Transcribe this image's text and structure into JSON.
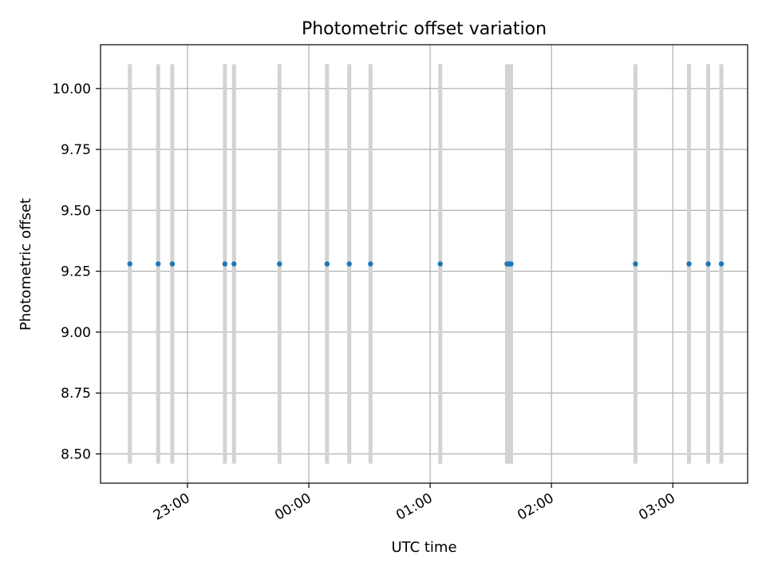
{
  "chart_data": {
    "type": "scatter",
    "title": "Photometric offset variation",
    "xlabel": "UTC time",
    "ylabel": "Photometric offset",
    "x_axis": "time",
    "x_ticks": [
      "23:00",
      "00:00",
      "01:00",
      "02:00",
      "03:00"
    ],
    "x_tick_minutes": [
      0,
      60,
      120,
      180,
      240
    ],
    "xlim_minutes": [
      -43,
      277
    ],
    "y_ticks": [
      "8.50",
      "8.75",
      "9.00",
      "9.25",
      "9.50",
      "9.75",
      "10.00"
    ],
    "ylim": [
      8.38,
      10.18
    ],
    "grid": true,
    "colors": {
      "point": "#1f77b4",
      "errorbar": "#d3d3d3"
    },
    "series": [
      {
        "x_minutes": [
          -28.5,
          -14.5,
          -7.5,
          18.5,
          23.0,
          45.5,
          69.0,
          80.0,
          90.5,
          125.0,
          158.0,
          159.0,
          160.0,
          221.5,
          248.0,
          257.5,
          264.0
        ],
        "y": [
          9.28,
          9.28,
          9.28,
          9.28,
          9.28,
          9.28,
          9.28,
          9.28,
          9.28,
          9.28,
          9.28,
          9.28,
          9.28,
          9.28,
          9.28,
          9.28,
          9.28
        ],
        "yerr": [
          0.82,
          0.82,
          0.82,
          0.82,
          0.82,
          0.82,
          0.82,
          0.82,
          0.82,
          0.82,
          0.82,
          0.82,
          0.82,
          0.82,
          0.82,
          0.82,
          0.82
        ]
      }
    ]
  }
}
